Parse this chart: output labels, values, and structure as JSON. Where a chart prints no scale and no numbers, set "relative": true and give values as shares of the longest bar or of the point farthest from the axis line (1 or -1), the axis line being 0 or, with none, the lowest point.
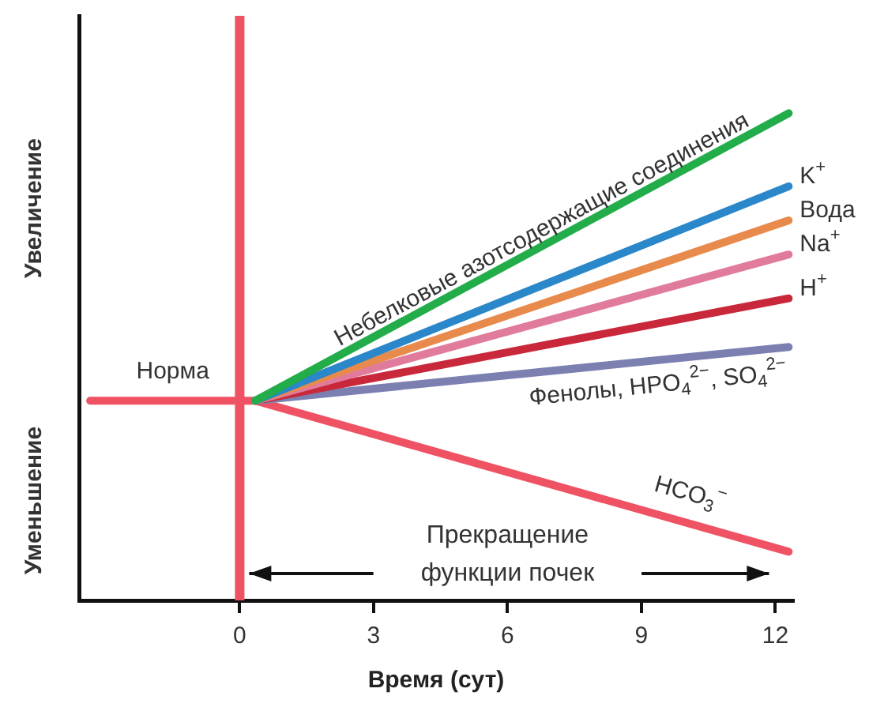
{
  "chart_data": {
    "type": "line",
    "relative": true,
    "xlabel": "Время (сут)",
    "xlim": [
      -3.6,
      12.4
    ],
    "xticks": [
      0,
      3,
      6,
      9,
      12
    ],
    "series": [
      {
        "name": "Небелковые азотсодержащие соединения",
        "color": "#22ad4a",
        "x": [
          0.35,
          12.3
        ],
        "values": [
          0.41,
          1
        ]
      },
      {
        "name": "K$^{+}$",
        "color": "#2a87c9",
        "x": [
          0.35,
          12.3
        ],
        "values": [
          0.41,
          0.85
        ]
      },
      {
        "name": "Вода",
        "color": "#e88a4c",
        "x": [
          0.35,
          12.3
        ],
        "values": [
          0.41,
          0.78
        ]
      },
      {
        "name": "Na$^{+}$",
        "color": "#e17b9c",
        "x": [
          0.35,
          12.3
        ],
        "values": [
          0.41,
          0.71
        ]
      },
      {
        "name": "H$^{+}$",
        "color": "#c9283b",
        "x": [
          0.35,
          12.3
        ],
        "values": [
          0.41,
          0.62
        ]
      },
      {
        "name": "Фенолы, HPO$_{4}$$^{2−}$, SO$_{4}$$^{2−}$",
        "color": "#7b80b1",
        "x": [
          0.35,
          12.3
        ],
        "values": [
          0.41,
          0.52
        ]
      },
      {
        "name": "HCO$_{3}$$^{−}$",
        "color": "#ef5262",
        "x": [
          -3.35,
          0.35,
          12.3
        ],
        "values": [
          0.41,
          0.41,
          0.1
        ]
      }
    ],
    "ref_lines": [
      {
        "axis": "x",
        "value": 0,
        "color": "#ef5262"
      }
    ],
    "annotations": [
      "Увеличение",
      "Уменьшение",
      "Прекращение\nфункции почек",
      {
        "text": "Норма",
        "x": -1.5,
        "y": 0.41
      }
    ],
    "legend": false,
    "grid": false
  }
}
